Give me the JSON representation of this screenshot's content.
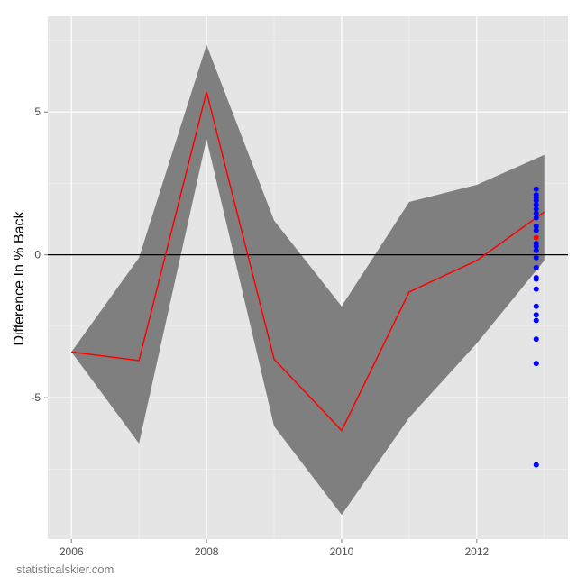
{
  "chart_data": {
    "type": "line",
    "ylabel": "Difference In % Back",
    "xlabel": "",
    "xlim": [
      2005.65,
      2013.35
    ],
    "ylim": [
      -9.95,
      8.35
    ],
    "x_ticks": [
      2006,
      2008,
      2010,
      2012
    ],
    "x_tick_labels": [
      "2006",
      "2008",
      "2010",
      "2012"
    ],
    "x_minor_ticks": [
      2007,
      2009,
      2011,
      2013
    ],
    "y_ticks": [
      5,
      0,
      -5
    ],
    "y_tick_labels": [
      "5",
      "0",
      "-5"
    ],
    "y_minor_ticks": [
      7.5,
      2.5,
      -2.5,
      -7.5
    ],
    "grid": true,
    "hline": 0,
    "colors": {
      "panel": "#e5e5e5",
      "grid_major": "#ffffff",
      "grid_minor": "#f2f2f2",
      "band": "#7f7f7f",
      "line": "#ff0000",
      "hline": "#000000",
      "points": "#0000ff",
      "highlight_point": "#ff0000"
    },
    "band": {
      "x": [
        2006,
        2007,
        2008,
        2009,
        2010,
        2011,
        2012,
        2013
      ],
      "upper": [
        -3.4,
        -0.1,
        7.35,
        1.2,
        -1.8,
        1.85,
        2.45,
        3.5
      ],
      "lower": [
        -3.4,
        -6.6,
        4.05,
        -6.0,
        -9.1,
        -5.7,
        -3.1,
        -0.2
      ]
    },
    "series": [
      {
        "x": [
          2006,
          2007,
          2008,
          2009,
          2010,
          2011,
          2012,
          2013
        ],
        "values": [
          -3.4,
          -3.7,
          5.7,
          -3.65,
          -6.15,
          -1.3,
          -0.2,
          1.5
        ]
      }
    ],
    "points": {
      "x": 2012.88,
      "values": [
        2.3,
        2.1,
        2.0,
        1.9,
        1.75,
        1.6,
        1.45,
        1.3,
        1.0,
        0.85,
        0.4,
        0.3,
        0.15,
        -0.1,
        -0.45,
        -0.8,
        -0.85,
        -1.2,
        -1.8,
        -2.1,
        -2.3,
        -2.95,
        -3.8,
        -7.35
      ],
      "highlight": {
        "x": 2012.88,
        "value": 0.6
      }
    }
  },
  "watermark": "statisticalskier.com"
}
